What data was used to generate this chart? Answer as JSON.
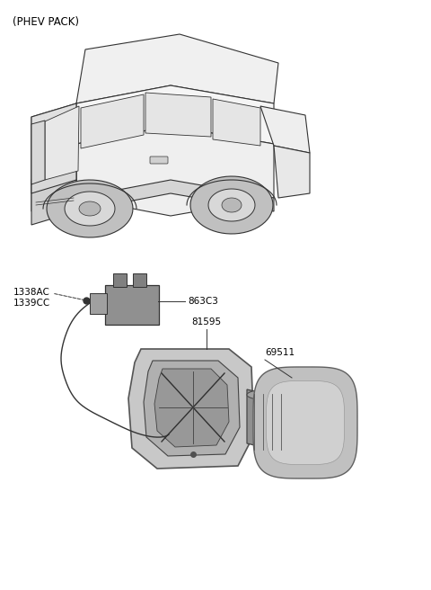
{
  "title": "(PHEV PACK)",
  "background_color": "#ffffff",
  "text_color": "#000000",
  "figsize": [
    4.8,
    6.56
  ],
  "dpi": 100,
  "label_1338": "1338AC\n1339CC",
  "label_863": "863C3",
  "label_815": "81595",
  "label_695": "69511",
  "color_light_gray": "#d8d8d8",
  "color_mid_gray": "#b0b0b0",
  "color_dark_gray": "#888888",
  "color_darker_gray": "#606060",
  "color_outline": "#333333",
  "color_door_outer": "#c0c0c0",
  "color_door_inner": "#a8a8a8"
}
